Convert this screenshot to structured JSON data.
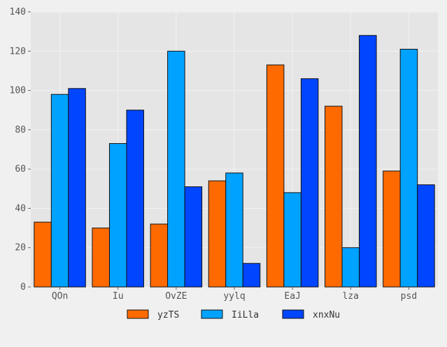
{
  "chart_data": {
    "type": "bar",
    "categories": [
      "QOn",
      "Iu",
      "OvZE",
      "yylq",
      "EaJ",
      "lza",
      "psd"
    ],
    "series": [
      {
        "name": "yzTS",
        "values": [
          33,
          30,
          32,
          54,
          113,
          92,
          59
        ]
      },
      {
        "name": "IiLla",
        "values": [
          98,
          73,
          120,
          58,
          48,
          20,
          121
        ]
      },
      {
        "name": "xnxNu",
        "values": [
          101,
          90,
          51,
          12,
          106,
          128,
          52
        ]
      }
    ],
    "colors": [
      "#ff6a00",
      "#00a2ff",
      "#0045ff"
    ],
    "ylim": [
      0,
      140
    ],
    "yticks": [
      0,
      20,
      40,
      60,
      80,
      100,
      120,
      140
    ],
    "title": "",
    "xlabel": "",
    "ylabel": "",
    "grid": true,
    "legend_position": "bottom-center"
  }
}
